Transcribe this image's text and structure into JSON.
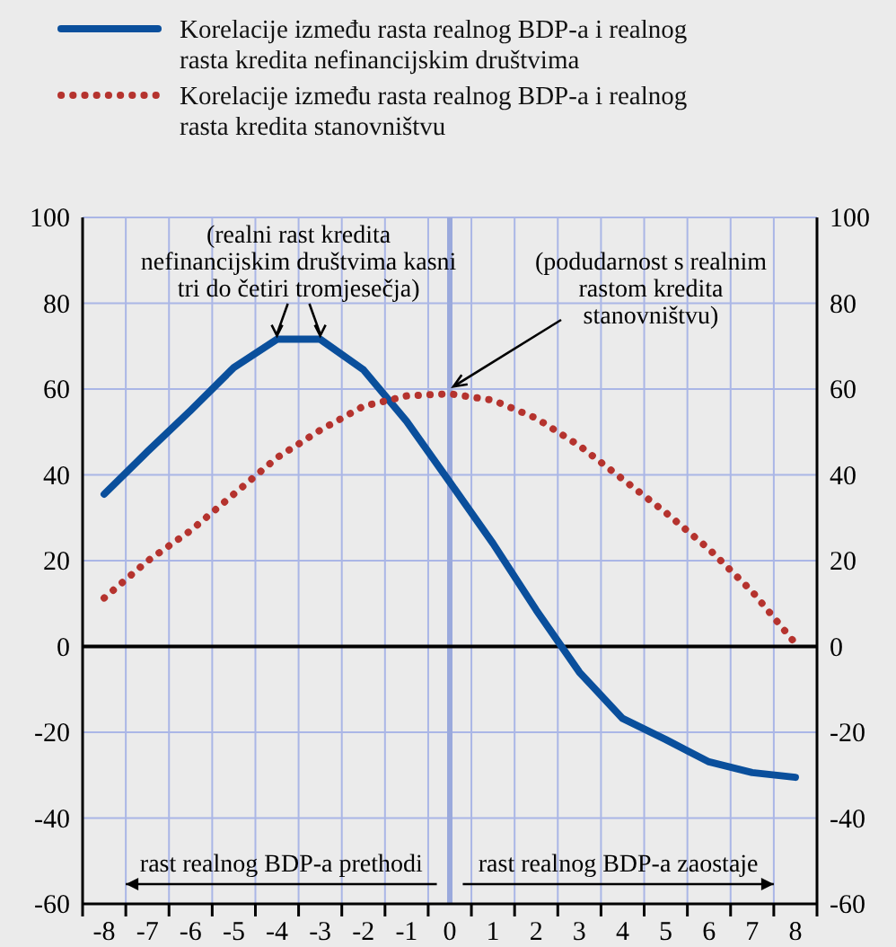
{
  "chart_data": {
    "type": "line",
    "x": [
      -8,
      -7,
      -6,
      -5,
      -4,
      -3,
      -2,
      -1,
      0,
      1,
      2,
      3,
      4,
      5,
      6,
      7,
      8
    ],
    "series": [
      {
        "name": "Korelacije između rasta realnog BDP-a i realnog rasta kredita nefinancijskim društvima",
        "color": "#0a4f9c",
        "line_style": "solid",
        "values": [
          35.5,
          45.4,
          55,
          65,
          71.6,
          71.6,
          64.5,
          52.5,
          38.3,
          24,
          8.5,
          -6,
          -16.8,
          -21.7,
          -26.9,
          -29.4,
          -30.5
        ]
      },
      {
        "name": "Korelacije između rasta realnog BDP-a i realnog rasta kredita stanovništvu",
        "color": "#b5332e",
        "line_style": "dotted",
        "values": [
          11.3,
          19.9,
          27,
          35.5,
          44,
          50.4,
          56,
          58.4,
          58.9,
          57.4,
          53.2,
          46.8,
          39,
          31.2,
          22.7,
          12.8,
          0.7
        ]
      }
    ],
    "xlim": [
      -8.5,
      8.5
    ],
    "xticks": [
      {
        "value": -8.5,
        "label": null
      },
      -8,
      {
        "value": -7.5,
        "label": null
      },
      -7,
      {
        "value": -6.5,
        "label": null
      },
      -6,
      {
        "value": -5.5,
        "label": null
      },
      -5,
      {
        "value": -4.5,
        "label": null
      },
      -4,
      {
        "value": -3.5,
        "label": null
      },
      -3,
      {
        "value": -2.5,
        "label": null
      },
      -2,
      {
        "value": -1.5,
        "label": null
      },
      -1,
      {
        "value": -0.5,
        "label": null
      },
      0,
      {
        "value": 0.5,
        "label": null
      },
      1,
      {
        "value": 1.5,
        "label": null
      },
      2,
      {
        "value": 2.5,
        "label": null
      },
      3,
      {
        "value": 3.5,
        "label": null
      },
      4,
      {
        "value": 4.5,
        "label": null
      },
      5,
      {
        "value": 5.5,
        "label": null
      },
      6,
      {
        "value": 6.5,
        "label": null
      },
      7,
      {
        "value": 7.5,
        "label": null
      },
      8,
      {
        "value": 8.5,
        "label": null
      }
    ],
    "ylim": [
      -60,
      100
    ],
    "yticks": [
      -60,
      -40,
      -20,
      0,
      20,
      40,
      60,
      80,
      100
    ],
    "y2lim": [
      -60,
      100
    ],
    "y2ticks": [
      -60,
      -40,
      -20,
      0,
      20,
      40,
      60,
      80,
      100
    ],
    "grid": true,
    "legend": "top left",
    "marker": "none",
    "ref_lines": [
      {
        "axis": "x",
        "value": 0,
        "color": "#9aa9dc"
      },
      {
        "axis": "y",
        "value": 0,
        "color": "#000000"
      }
    ],
    "annotations": [
      {
        "text": "(realni rast kredita nefinancijskim društvima kasni tri do četiri tromjesečja)",
        "x": -3.5,
        "y": 71.6
      },
      {
        "text": "(podudarnost s realnim rastom kredita stanovništvu)",
        "x": 0,
        "y": 58.9
      },
      "rast realnog BDP-a prethodi",
      "rast realnog BDP-a zaostaje"
    ]
  }
}
